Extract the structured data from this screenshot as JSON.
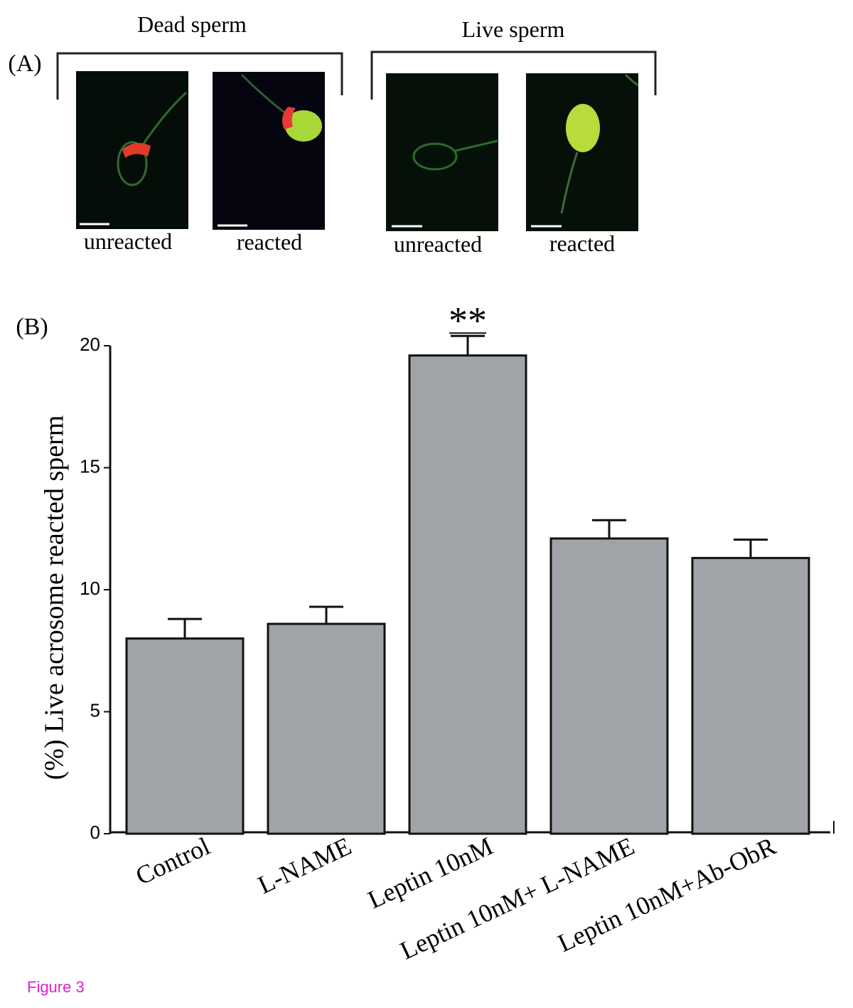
{
  "panel_a": {
    "label": "(A)",
    "groups": [
      {
        "title": "Dead sperm",
        "images": [
          "unreacted",
          "reacted"
        ]
      },
      {
        "title": "Live sperm",
        "images": [
          "unreacted",
          "reacted"
        ]
      }
    ]
  },
  "chart_data": {
    "type": "bar",
    "panel_label": "(B)",
    "y_label": "(%) Live acrosome reacted sperm",
    "categories": [
      "Control",
      "L-NAME",
      "Leptin 10nM",
      "Leptin 10nM+ L-NAME",
      "Leptin 10nM+Ab-ObR"
    ],
    "values": [
      8.0,
      8.6,
      19.6,
      12.1,
      11.3
    ],
    "errors": [
      0.8,
      0.7,
      0.8,
      0.75,
      0.75
    ],
    "color": "#a0a3a8",
    "ylim": [
      0,
      20
    ],
    "yticks": [
      0,
      5,
      10,
      15,
      20
    ],
    "grid": false,
    "annotation": {
      "text": "**",
      "category": "Leptin 10nM"
    }
  },
  "figure_label": "Figure 3"
}
